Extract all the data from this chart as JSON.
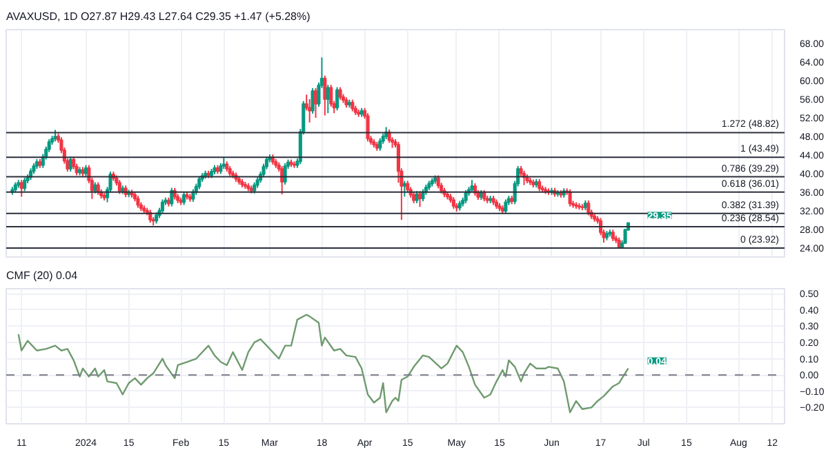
{
  "chart_data": [
    {
      "type": "candlestick",
      "title": "AVAXUSD, 1D O27.87 H29.43 L27.64 C29.35 +1.47 (+5.28%)",
      "tick_labels": "y",
      "grid": "x",
      "xlim": [
        "2023-12-06",
        "2024-08-16"
      ],
      "ylim": [
        22,
        71
      ],
      "xticks": [
        {
          "value": "2023-12-11",
          "label": null
        },
        {
          "value": "2024-01-01",
          "label": null
        },
        {
          "value": "2024-01-15",
          "label": null
        },
        {
          "value": "2024-02-01",
          "label": null
        },
        {
          "value": "2024-02-15",
          "label": null
        },
        {
          "value": "2024-03-01",
          "label": null
        },
        {
          "value": "2024-03-18",
          "label": null
        },
        {
          "value": "2024-04-01",
          "label": null
        },
        {
          "value": "2024-04-15",
          "label": null
        },
        {
          "value": "2024-05-01",
          "label": null
        },
        {
          "value": "2024-05-15",
          "label": null
        },
        {
          "value": "2024-06-01",
          "label": null
        },
        {
          "value": "2024-06-17",
          "label": null
        },
        {
          "value": "2024-07-01",
          "label": null
        },
        {
          "value": "2024-07-15",
          "label": null
        },
        {
          "value": "2024-08-01",
          "label": null
        },
        {
          "value": "2024-08-12",
          "label": null
        }
      ],
      "yticks": [
        {
          "value": 24,
          "label": "24.00"
        },
        {
          "value": 28,
          "label": "28.00"
        },
        {
          "value": 32,
          "label": "32.00"
        },
        {
          "value": 36,
          "label": "36.00"
        },
        {
          "value": 40,
          "label": "40.00"
        },
        {
          "value": 44,
          "label": "44.00"
        },
        {
          "value": 48,
          "label": "48.00"
        },
        {
          "value": 52,
          "label": "52.00"
        },
        {
          "value": 56,
          "label": "56.00"
        },
        {
          "value": 60,
          "label": "60.00"
        },
        {
          "value": 64,
          "label": "64.00"
        },
        {
          "value": 68,
          "label": "68.00"
        }
      ],
      "ref_lines": [
        {
          "axis": "y",
          "value": 48.82,
          "label": "1.272 (48.82)",
          "color": "#2a2e39"
        },
        {
          "axis": "y",
          "value": 43.49,
          "label": "1 (43.49)",
          "color": "#2a2e39"
        },
        {
          "axis": "y",
          "value": 39.29,
          "label": "0.786 (39.29)",
          "color": "#2a2e39"
        },
        {
          "axis": "y",
          "value": 36.01,
          "label": "0.618 (36.01)",
          "color": "#2a2e39"
        },
        {
          "axis": "y",
          "value": 31.39,
          "label": "0.382 (31.39)",
          "color": "#2a2e39"
        },
        {
          "axis": "y",
          "value": 28.54,
          "label": "0.236 (28.54)",
          "color": "#2a2e39"
        },
        {
          "axis": "y",
          "value": 23.92,
          "label": "0 (23.92)",
          "color": "#2a2e39"
        }
      ],
      "annotations": [
        {
          "text": "29.35",
          "x": "2024-06-26",
          "y": 29.35
        }
      ],
      "x": [
        "2023-12-08",
        "2023-12-09",
        "2023-12-10",
        "2023-12-11",
        "2023-12-12",
        "2023-12-13",
        "2023-12-14",
        "2023-12-15",
        "2023-12-16",
        "2023-12-17",
        "2023-12-18",
        "2023-12-19",
        "2023-12-20",
        "2023-12-21",
        "2023-12-22",
        "2023-12-23",
        "2023-12-24",
        "2023-12-25",
        "2023-12-26",
        "2023-12-27",
        "2023-12-28",
        "2023-12-29",
        "2023-12-30",
        "2023-12-31",
        "2024-01-01",
        "2024-01-02",
        "2024-01-03",
        "2024-01-04",
        "2024-01-05",
        "2024-01-06",
        "2024-01-07",
        "2024-01-08",
        "2024-01-09",
        "2024-01-10",
        "2024-01-11",
        "2024-01-12",
        "2024-01-13",
        "2024-01-14",
        "2024-01-15",
        "2024-01-16",
        "2024-01-17",
        "2024-01-18",
        "2024-01-19",
        "2024-01-20",
        "2024-01-21",
        "2024-01-22",
        "2024-01-23",
        "2024-01-24",
        "2024-01-25",
        "2024-01-26",
        "2024-01-27",
        "2024-01-28",
        "2024-01-29",
        "2024-01-30",
        "2024-01-31",
        "2024-02-01",
        "2024-02-02",
        "2024-02-03",
        "2024-02-04",
        "2024-02-05",
        "2024-02-06",
        "2024-02-07",
        "2024-02-08",
        "2024-02-09",
        "2024-02-10",
        "2024-02-11",
        "2024-02-12",
        "2024-02-13",
        "2024-02-14",
        "2024-02-15",
        "2024-02-16",
        "2024-02-17",
        "2024-02-18",
        "2024-02-19",
        "2024-02-20",
        "2024-02-21",
        "2024-02-22",
        "2024-02-23",
        "2024-02-24",
        "2024-02-25",
        "2024-02-26",
        "2024-02-27",
        "2024-02-28",
        "2024-02-29",
        "2024-03-01",
        "2024-03-02",
        "2024-03-03",
        "2024-03-04",
        "2024-03-05",
        "2024-03-06",
        "2024-03-07",
        "2024-03-08",
        "2024-03-09",
        "2024-03-10",
        "2024-03-11",
        "2024-03-12",
        "2024-03-13",
        "2024-03-14",
        "2024-03-15",
        "2024-03-16",
        "2024-03-17",
        "2024-03-18",
        "2024-03-19",
        "2024-03-20",
        "2024-03-21",
        "2024-03-22",
        "2024-03-23",
        "2024-03-24",
        "2024-03-25",
        "2024-03-26",
        "2024-03-27",
        "2024-03-28",
        "2024-03-29",
        "2024-03-30",
        "2024-03-31",
        "2024-04-01",
        "2024-04-02",
        "2024-04-03",
        "2024-04-04",
        "2024-04-05",
        "2024-04-06",
        "2024-04-07",
        "2024-04-08",
        "2024-04-09",
        "2024-04-10",
        "2024-04-11",
        "2024-04-12",
        "2024-04-13",
        "2024-04-14",
        "2024-04-15",
        "2024-04-16",
        "2024-04-17",
        "2024-04-18",
        "2024-04-19",
        "2024-04-20",
        "2024-04-21",
        "2024-04-22",
        "2024-04-23",
        "2024-04-24",
        "2024-04-25",
        "2024-04-26",
        "2024-04-27",
        "2024-04-28",
        "2024-04-29",
        "2024-04-30",
        "2024-05-01",
        "2024-05-02",
        "2024-05-03",
        "2024-05-04",
        "2024-05-05",
        "2024-05-06",
        "2024-05-07",
        "2024-05-08",
        "2024-05-09",
        "2024-05-10",
        "2024-05-11",
        "2024-05-12",
        "2024-05-13",
        "2024-05-14",
        "2024-05-15",
        "2024-05-16",
        "2024-05-17",
        "2024-05-18",
        "2024-05-19",
        "2024-05-20",
        "2024-05-21",
        "2024-05-22",
        "2024-05-23",
        "2024-05-24",
        "2024-05-25",
        "2024-05-26",
        "2024-05-27",
        "2024-05-28",
        "2024-05-29",
        "2024-05-30",
        "2024-05-31",
        "2024-06-01",
        "2024-06-02",
        "2024-06-03",
        "2024-06-04",
        "2024-06-05",
        "2024-06-06",
        "2024-06-07",
        "2024-06-08",
        "2024-06-09",
        "2024-06-10",
        "2024-06-11",
        "2024-06-12",
        "2024-06-13",
        "2024-06-14",
        "2024-06-15",
        "2024-06-16",
        "2024-06-17",
        "2024-06-18",
        "2024-06-19",
        "2024-06-20",
        "2024-06-21",
        "2024-06-22",
        "2024-06-23",
        "2024-06-24",
        "2024-06-25",
        "2024-06-26"
      ],
      "ohlc": [
        [
          36.0,
          37.1,
          35.4,
          36.5
        ],
        [
          36.5,
          38.1,
          35.9,
          37.5
        ],
        [
          37.5,
          38.6,
          36.9,
          38.0
        ],
        [
          38.0,
          38.6,
          35.0,
          36.8
        ],
        [
          36.8,
          39.1,
          36.2,
          38.5
        ],
        [
          38.5,
          39.8,
          37.9,
          39.2
        ],
        [
          39.2,
          41.1,
          38.6,
          40.5
        ],
        [
          40.5,
          42.2,
          39.9,
          41.6
        ],
        [
          41.6,
          43.1,
          41.0,
          42.5
        ],
        [
          42.5,
          43.1,
          41.2,
          41.8
        ],
        [
          41.8,
          44.2,
          41.2,
          43.6
        ],
        [
          43.6,
          45.8,
          43.0,
          45.2
        ],
        [
          45.2,
          47.4,
          44.6,
          46.8
        ],
        [
          46.8,
          48.1,
          46.2,
          47.5
        ],
        [
          47.5,
          49.4,
          46.9,
          48.0
        ],
        [
          48.0,
          48.6,
          46.6,
          47.2
        ],
        [
          47.2,
          47.8,
          44.4,
          45.0
        ],
        [
          45.0,
          45.6,
          42.1,
          42.7
        ],
        [
          42.7,
          43.3,
          40.4,
          41.0
        ],
        [
          41.0,
          43.6,
          40.4,
          43.0
        ],
        [
          43.0,
          43.6,
          40.9,
          41.5
        ],
        [
          41.5,
          42.1,
          39.6,
          40.2
        ],
        [
          40.2,
          41.4,
          39.6,
          40.8
        ],
        [
          40.8,
          41.4,
          39.4,
          40.0
        ],
        [
          40.0,
          41.8,
          39.4,
          41.2
        ],
        [
          41.2,
          41.8,
          37.9,
          38.5
        ],
        [
          38.5,
          39.1,
          34.5,
          36.3
        ],
        [
          36.3,
          38.1,
          35.7,
          37.5
        ],
        [
          37.5,
          38.1,
          35.4,
          36.0
        ],
        [
          36.0,
          36.6,
          34.6,
          35.2
        ],
        [
          35.2,
          35.8,
          34.2,
          34.8
        ],
        [
          34.8,
          37.1,
          33.8,
          36.5
        ],
        [
          36.5,
          40.4,
          35.9,
          39.8
        ],
        [
          39.8,
          40.4,
          38.4,
          39.0
        ],
        [
          39.0,
          39.6,
          37.4,
          38.0
        ],
        [
          38.0,
          38.6,
          35.6,
          36.2
        ],
        [
          36.2,
          37.4,
          35.6,
          36.8
        ],
        [
          36.8,
          37.4,
          34.9,
          35.5
        ],
        [
          35.5,
          36.5,
          34.9,
          35.9
        ],
        [
          35.9,
          36.5,
          34.8,
          35.4
        ],
        [
          35.4,
          36.0,
          34.0,
          34.6
        ],
        [
          34.6,
          35.2,
          32.6,
          33.2
        ],
        [
          33.2,
          33.8,
          31.9,
          32.5
        ],
        [
          32.5,
          33.1,
          31.4,
          32.0
        ],
        [
          32.0,
          32.6,
          31.0,
          31.6
        ],
        [
          31.6,
          32.2,
          29.4,
          30.0
        ],
        [
          30.0,
          30.6,
          28.8,
          29.8
        ],
        [
          29.8,
          31.6,
          29.2,
          31.0
        ],
        [
          31.0,
          32.6,
          30.4,
          32.0
        ],
        [
          32.0,
          34.4,
          31.4,
          33.8
        ],
        [
          33.8,
          34.8,
          33.2,
          34.2
        ],
        [
          34.2,
          34.8,
          32.9,
          33.5
        ],
        [
          33.5,
          36.9,
          32.9,
          36.3
        ],
        [
          36.3,
          36.9,
          34.4,
          35.0
        ],
        [
          35.0,
          35.6,
          33.6,
          34.2
        ],
        [
          34.2,
          34.8,
          33.2,
          33.8
        ],
        [
          33.8,
          36.0,
          33.2,
          35.4
        ],
        [
          35.4,
          36.0,
          34.4,
          35.0
        ],
        [
          35.0,
          35.6,
          33.9,
          34.5
        ],
        [
          34.5,
          36.6,
          33.9,
          36.0
        ],
        [
          36.0,
          37.8,
          35.4,
          37.2
        ],
        [
          37.2,
          39.4,
          36.6,
          38.8
        ],
        [
          38.8,
          40.1,
          38.2,
          39.5
        ],
        [
          39.5,
          40.6,
          38.9,
          40.0
        ],
        [
          40.0,
          40.6,
          39.0,
          39.6
        ],
        [
          39.6,
          41.0,
          39.0,
          40.4
        ],
        [
          40.4,
          41.8,
          39.8,
          41.2
        ],
        [
          41.2,
          41.8,
          39.9,
          40.5
        ],
        [
          40.5,
          42.2,
          39.9,
          41.6
        ],
        [
          41.6,
          43.4,
          41.0,
          42.0
        ],
        [
          42.0,
          42.6,
          40.4,
          41.0
        ],
        [
          41.0,
          41.6,
          39.4,
          40.0
        ],
        [
          40.0,
          40.6,
          39.0,
          39.6
        ],
        [
          39.6,
          40.2,
          38.2,
          38.8
        ],
        [
          38.8,
          39.4,
          37.6,
          38.2
        ],
        [
          38.2,
          38.8,
          37.0,
          37.6
        ],
        [
          37.6,
          38.2,
          36.7,
          37.3
        ],
        [
          37.3,
          37.9,
          36.2,
          36.8
        ],
        [
          36.8,
          37.4,
          35.7,
          36.3
        ],
        [
          36.3,
          38.1,
          35.7,
          37.5
        ],
        [
          37.5,
          39.2,
          36.9,
          38.6
        ],
        [
          38.6,
          40.4,
          38.0,
          39.8
        ],
        [
          39.8,
          42.1,
          39.2,
          41.5
        ],
        [
          41.5,
          43.6,
          40.9,
          43.0
        ],
        [
          43.0,
          44.1,
          42.4,
          43.5
        ],
        [
          43.5,
          44.1,
          41.9,
          42.5
        ],
        [
          42.5,
          43.1,
          41.2,
          41.8
        ],
        [
          41.8,
          42.4,
          40.4,
          41.0
        ],
        [
          41.0,
          41.6,
          35.5,
          38.2
        ],
        [
          38.2,
          42.2,
          37.6,
          41.6
        ],
        [
          41.6,
          43.0,
          41.0,
          42.4
        ],
        [
          42.4,
          43.0,
          41.4,
          42.0
        ],
        [
          42.0,
          42.6,
          41.2,
          41.8
        ],
        [
          41.8,
          43.2,
          41.2,
          42.6
        ],
        [
          42.6,
          49.6,
          42.0,
          49.0
        ],
        [
          49.0,
          55.6,
          48.4,
          55.0
        ],
        [
          55.0,
          57.0,
          53.6,
          54.2
        ],
        [
          54.2,
          56.0,
          51.0,
          53.5
        ],
        [
          53.5,
          58.4,
          52.9,
          57.8
        ],
        [
          57.8,
          58.4,
          52.0,
          55.0
        ],
        [
          55.0,
          59.6,
          54.4,
          59.0
        ],
        [
          59.0,
          65.0,
          58.4,
          60.5
        ],
        [
          60.5,
          61.1,
          52.5,
          56.0
        ],
        [
          56.0,
          59.1,
          53.0,
          58.5
        ],
        [
          58.5,
          59.1,
          54.4,
          55.0
        ],
        [
          55.0,
          55.6,
          53.0,
          54.2
        ],
        [
          54.2,
          58.6,
          53.6,
          58.0
        ],
        [
          58.0,
          58.6,
          55.9,
          56.5
        ],
        [
          56.5,
          57.1,
          55.2,
          55.8
        ],
        [
          55.8,
          56.4,
          54.2,
          54.8
        ],
        [
          54.8,
          55.9,
          54.2,
          55.3
        ],
        [
          55.3,
          55.9,
          53.4,
          54.0
        ],
        [
          54.0,
          54.6,
          52.6,
          53.2
        ],
        [
          53.2,
          53.8,
          52.2,
          52.8
        ],
        [
          52.8,
          54.1,
          52.2,
          53.5
        ],
        [
          53.5,
          54.1,
          51.8,
          52.4
        ],
        [
          52.4,
          53.0,
          46.9,
          47.5
        ],
        [
          47.5,
          48.1,
          46.2,
          46.8
        ],
        [
          46.8,
          47.4,
          45.6,
          46.2
        ],
        [
          46.2,
          46.8,
          44.9,
          45.5
        ],
        [
          45.5,
          47.6,
          44.9,
          47.0
        ],
        [
          47.0,
          48.6,
          46.4,
          48.0
        ],
        [
          48.0,
          50.0,
          47.4,
          48.9
        ],
        [
          48.9,
          49.5,
          46.6,
          47.2
        ],
        [
          47.2,
          47.8,
          45.5,
          46.8
        ],
        [
          46.8,
          47.4,
          45.6,
          46.2
        ],
        [
          46.2,
          46.8,
          38.0,
          40.5
        ],
        [
          40.5,
          41.1,
          30.0,
          37.3
        ],
        [
          37.3,
          38.4,
          35.0,
          37.8
        ],
        [
          37.8,
          38.4,
          35.9,
          36.5
        ],
        [
          36.5,
          37.1,
          34.8,
          35.4
        ],
        [
          35.4,
          36.0,
          33.6,
          34.2
        ],
        [
          34.2,
          36.2,
          33.6,
          35.6
        ],
        [
          35.6,
          36.2,
          32.8,
          34.6
        ],
        [
          34.6,
          36.6,
          34.0,
          36.0
        ],
        [
          36.0,
          37.6,
          35.4,
          37.0
        ],
        [
          37.0,
          38.4,
          36.4,
          37.8
        ],
        [
          37.8,
          39.0,
          37.2,
          38.4
        ],
        [
          38.4,
          39.6,
          37.8,
          39.0
        ],
        [
          39.0,
          39.6,
          36.8,
          37.4
        ],
        [
          37.4,
          38.0,
          35.7,
          36.3
        ],
        [
          36.3,
          36.9,
          34.9,
          35.5
        ],
        [
          35.5,
          36.1,
          34.4,
          35.0
        ],
        [
          35.0,
          35.6,
          33.7,
          34.3
        ],
        [
          34.3,
          34.9,
          32.4,
          33.0
        ],
        [
          33.0,
          33.6,
          31.8,
          32.6
        ],
        [
          32.6,
          34.1,
          32.0,
          33.5
        ],
        [
          33.5,
          34.8,
          32.9,
          34.2
        ],
        [
          34.2,
          36.4,
          33.6,
          35.8
        ],
        [
          35.8,
          37.1,
          35.2,
          36.5
        ],
        [
          36.5,
          38.6,
          35.9,
          37.3
        ],
        [
          37.3,
          37.9,
          35.2,
          35.8
        ],
        [
          35.8,
          36.4,
          34.3,
          34.9
        ],
        [
          34.9,
          36.4,
          34.3,
          35.8
        ],
        [
          35.8,
          36.4,
          34.0,
          34.6
        ],
        [
          34.6,
          35.2,
          33.6,
          34.2
        ],
        [
          34.2,
          35.2,
          33.6,
          34.6
        ],
        [
          34.6,
          35.2,
          33.2,
          33.8
        ],
        [
          33.8,
          34.4,
          32.4,
          33.0
        ],
        [
          33.0,
          33.6,
          31.9,
          32.5
        ],
        [
          32.5,
          33.1,
          31.3,
          31.9
        ],
        [
          31.9,
          34.4,
          31.3,
          33.8
        ],
        [
          33.8,
          35.2,
          33.2,
          34.6
        ],
        [
          34.6,
          35.2,
          33.4,
          34.0
        ],
        [
          34.0,
          38.4,
          33.4,
          37.8
        ],
        [
          37.8,
          41.6,
          37.2,
          41.0
        ],
        [
          41.0,
          41.6,
          39.4,
          40.0
        ],
        [
          40.0,
          40.6,
          37.5,
          39.2
        ],
        [
          39.2,
          39.8,
          37.9,
          38.5
        ],
        [
          38.5,
          39.1,
          37.5,
          38.1
        ],
        [
          38.1,
          38.7,
          37.0,
          37.6
        ],
        [
          37.6,
          38.8,
          37.0,
          38.2
        ],
        [
          38.2,
          38.8,
          36.2,
          36.8
        ],
        [
          36.8,
          37.4,
          35.9,
          36.5
        ],
        [
          36.5,
          37.1,
          35.6,
          36.2
        ],
        [
          36.2,
          36.8,
          35.4,
          36.0
        ],
        [
          36.0,
          36.9,
          35.4,
          36.3
        ],
        [
          36.3,
          36.9,
          35.0,
          35.6
        ],
        [
          35.6,
          36.4,
          35.0,
          35.8
        ],
        [
          35.8,
          36.4,
          34.8,
          35.4
        ],
        [
          35.4,
          36.8,
          34.8,
          36.2
        ],
        [
          36.2,
          36.8,
          35.4,
          36.0
        ],
        [
          36.0,
          36.6,
          32.9,
          33.5
        ],
        [
          33.5,
          34.1,
          32.6,
          33.2
        ],
        [
          33.2,
          33.8,
          32.4,
          33.0
        ],
        [
          33.0,
          33.6,
          32.2,
          32.8
        ],
        [
          32.8,
          33.4,
          32.1,
          32.7
        ],
        [
          32.7,
          34.2,
          32.1,
          33.6
        ],
        [
          33.6,
          34.2,
          31.0,
          31.6
        ],
        [
          31.6,
          32.2,
          30.2,
          30.8
        ],
        [
          30.8,
          31.4,
          29.6,
          30.2
        ],
        [
          30.2,
          30.8,
          29.2,
          29.8
        ],
        [
          29.8,
          30.4,
          26.7,
          27.3
        ],
        [
          27.3,
          27.9,
          25.1,
          26.2
        ],
        [
          26.2,
          27.6,
          25.6,
          27.0
        ],
        [
          27.0,
          27.9,
          26.4,
          27.3
        ],
        [
          27.3,
          27.9,
          25.4,
          26.0
        ],
        [
          26.0,
          26.6,
          25.0,
          25.6
        ],
        [
          25.6,
          26.2,
          23.92,
          24.1
        ],
        [
          24.1,
          25.6,
          23.95,
          25.0
        ],
        [
          25.0,
          28.1,
          24.8,
          27.87
        ],
        [
          27.87,
          29.43,
          27.64,
          29.35
        ]
      ],
      "colors": [
        "#089981",
        "#089981",
        "#089981",
        "#f23645",
        "#089981",
        "#089981",
        "#089981",
        "#089981",
        "#089981",
        "#f23645",
        "#089981",
        "#089981",
        "#089981",
        "#089981",
        "#089981",
        "#f23645",
        "#f23645",
        "#f23645",
        "#f23645",
        "#089981",
        "#f23645",
        "#f23645",
        "#089981",
        "#f23645",
        "#089981",
        "#f23645",
        "#f23645",
        "#089981",
        "#f23645",
        "#f23645",
        "#f23645",
        "#089981",
        "#089981",
        "#f23645",
        "#f23645",
        "#f23645",
        "#089981",
        "#f23645",
        "#089981",
        "#f23645",
        "#f23645",
        "#f23645",
        "#f23645",
        "#f23645",
        "#f23645",
        "#f23645",
        "#f23645",
        "#089981",
        "#089981",
        "#089981",
        "#089981",
        "#f23645",
        "#089981",
        "#f23645",
        "#f23645",
        "#f23645",
        "#089981",
        "#f23645",
        "#f23645",
        "#089981",
        "#089981",
        "#089981",
        "#089981",
        "#089981",
        "#f23645",
        "#089981",
        "#089981",
        "#f23645",
        "#089981",
        "#089981",
        "#f23645",
        "#f23645",
        "#f23645",
        "#f23645",
        "#f23645",
        "#f23645",
        "#f23645",
        "#f23645",
        "#f23645",
        "#089981",
        "#089981",
        "#089981",
        "#089981",
        "#089981",
        "#089981",
        "#f23645",
        "#f23645",
        "#f23645",
        "#f23645",
        "#089981",
        "#089981",
        "#f23645",
        "#f23645",
        "#089981",
        "#089981",
        "#089981",
        "#f23645",
        "#f23645",
        "#089981",
        "#f23645",
        "#089981",
        "#089981",
        "#f23645",
        "#089981",
        "#f23645",
        "#f23645",
        "#089981",
        "#f23645",
        "#f23645",
        "#f23645",
        "#089981",
        "#f23645",
        "#f23645",
        "#f23645",
        "#089981",
        "#f23645",
        "#f23645",
        "#f23645",
        "#f23645",
        "#f23645",
        "#089981",
        "#089981",
        "#089981",
        "#f23645",
        "#f23645",
        "#f23645",
        "#f23645",
        "#f23645",
        "#089981",
        "#f23645",
        "#f23645",
        "#f23645",
        "#089981",
        "#f23645",
        "#089981",
        "#089981",
        "#089981",
        "#089981",
        "#089981",
        "#f23645",
        "#f23645",
        "#f23645",
        "#f23645",
        "#f23645",
        "#f23645",
        "#f23645",
        "#089981",
        "#089981",
        "#089981",
        "#089981",
        "#089981",
        "#f23645",
        "#f23645",
        "#089981",
        "#f23645",
        "#f23645",
        "#089981",
        "#f23645",
        "#f23645",
        "#f23645",
        "#f23645",
        "#089981",
        "#089981",
        "#f23645",
        "#089981",
        "#089981",
        "#f23645",
        "#f23645",
        "#f23645",
        "#f23645",
        "#f23645",
        "#089981",
        "#f23645",
        "#f23645",
        "#f23645",
        "#f23645",
        "#089981",
        "#f23645",
        "#089981",
        "#f23645",
        "#089981",
        "#f23645",
        "#f23645",
        "#f23645",
        "#f23645",
        "#f23645",
        "#f23645",
        "#089981",
        "#f23645",
        "#f23645",
        "#f23645",
        "#f23645",
        "#f23645",
        "#f23645",
        "#089981",
        "#089981",
        "#f23645",
        "#f23645",
        "#f23645",
        "#089981",
        "#089981",
        "#089981"
      ]
    },
    {
      "type": "line",
      "title": "CMF (20) 0.04",
      "grid": true,
      "xlim": [
        "2023-12-06",
        "2024-08-16"
      ],
      "ylim": [
        -0.3,
        0.53
      ],
      "xticks": [
        {
          "value": "2023-12-11",
          "label": "11"
        },
        {
          "value": "2024-01-01",
          "label": "2024"
        },
        {
          "value": "2024-01-15",
          "label": "15"
        },
        {
          "value": "2024-02-01",
          "label": "Feb"
        },
        {
          "value": "2024-02-15",
          "label": "15"
        },
        {
          "value": "2024-03-01",
          "label": "Mar"
        },
        {
          "value": "2024-03-18",
          "label": "18"
        },
        {
          "value": "2024-04-01",
          "label": "Apr"
        },
        {
          "value": "2024-04-15",
          "label": "15"
        },
        {
          "value": "2024-05-01",
          "label": "May"
        },
        {
          "value": "2024-05-15",
          "label": "15"
        },
        {
          "value": "2024-06-01",
          "label": "Jun"
        },
        {
          "value": "2024-06-17",
          "label": "17"
        },
        {
          "value": "2024-07-01",
          "label": "Jul"
        },
        {
          "value": "2024-07-15",
          "label": "15"
        },
        {
          "value": "2024-08-01",
          "label": "Aug"
        },
        {
          "value": "2024-08-12",
          "label": "12"
        }
      ],
      "yticks": [
        {
          "value": -0.2,
          "label": "−0.20"
        },
        {
          "value": -0.1,
          "label": "−0.10"
        },
        {
          "value": 0,
          "label": "0.00"
        },
        {
          "value": 0.1,
          "label": "0.10"
        },
        {
          "value": 0.2,
          "label": "0.20"
        },
        {
          "value": 0.3,
          "label": "0.30"
        },
        {
          "value": 0.4,
          "label": "0.40"
        },
        {
          "value": 0.5,
          "label": "0.50"
        }
      ],
      "ref_lines": [
        {
          "axis": "y",
          "value": 0,
          "color": "#787b86",
          "line_style": "dashed"
        }
      ],
      "annotations": [
        {
          "text": "0.04",
          "x": "2024-06-26",
          "y": 0.04
        }
      ],
      "x": [
        "2023-12-10",
        "2023-12-11",
        "2023-12-13",
        "2023-12-16",
        "2023-12-19",
        "2023-12-22",
        "2023-12-24",
        "2023-12-26",
        "2023-12-28",
        "2023-12-30",
        "2023-12-31",
        "2024-01-02",
        "2024-01-04",
        "2024-01-05",
        "2024-01-07",
        "2024-01-08",
        "2024-01-11",
        "2024-01-13",
        "2024-01-15",
        "2024-01-17",
        "2024-01-19",
        "2024-01-21",
        "2024-01-23",
        "2024-01-26",
        "2024-01-27",
        "2024-01-30",
        "2024-01-31",
        "2024-02-03",
        "2024-02-06",
        "2024-02-10",
        "2024-02-12",
        "2024-02-14",
        "2024-02-16",
        "2024-02-18",
        "2024-02-21",
        "2024-02-23",
        "2024-02-25",
        "2024-02-27",
        "2024-02-29",
        "2024-03-02",
        "2024-03-04",
        "2024-03-06",
        "2024-03-08",
        "2024-03-10",
        "2024-03-13",
        "2024-03-14",
        "2024-03-17",
        "2024-03-18",
        "2024-03-19",
        "2024-03-22",
        "2024-03-24",
        "2024-03-26",
        "2024-03-29",
        "2024-03-31",
        "2024-04-02",
        "2024-04-04",
        "2024-04-06",
        "2024-04-07",
        "2024-04-08",
        "2024-04-10",
        "2024-04-11",
        "2024-04-12",
        "2024-04-13",
        "2024-04-15",
        "2024-04-17",
        "2024-04-20",
        "2024-04-22",
        "2024-04-26",
        "2024-04-28",
        "2024-05-01",
        "2024-05-03",
        "2024-05-05",
        "2024-05-07",
        "2024-05-10",
        "2024-05-12",
        "2024-05-14",
        "2024-05-16",
        "2024-05-17",
        "2024-05-18",
        "2024-05-20",
        "2024-05-22",
        "2024-05-23",
        "2024-05-25",
        "2024-05-27",
        "2024-05-30",
        "2024-05-31",
        "2024-06-03",
        "2024-06-05",
        "2024-06-07",
        "2024-06-09",
        "2024-06-11",
        "2024-06-14",
        "2024-06-16",
        "2024-06-18",
        "2024-06-21",
        "2024-06-23",
        "2024-06-26"
      ],
      "series": [
        {
          "color": "#6f9a6f",
          "values": [
            0.25,
            0.15,
            0.21,
            0.15,
            0.16,
            0.18,
            0.15,
            0.16,
            0.09,
            -0.01,
            0.04,
            -0.01,
            0.04,
            -0.01,
            0.03,
            -0.04,
            -0.05,
            -0.12,
            -0.05,
            -0.02,
            -0.06,
            -0.02,
            0.01,
            0.1,
            0.06,
            -0.02,
            0.06,
            0.08,
            0.1,
            0.18,
            0.12,
            0.08,
            0.06,
            0.14,
            0.03,
            0.14,
            0.2,
            0.22,
            0.18,
            0.14,
            0.1,
            0.18,
            0.18,
            0.34,
            0.37,
            0.36,
            0.32,
            0.18,
            0.23,
            0.15,
            0.16,
            0.12,
            0.11,
            0.04,
            -0.12,
            -0.17,
            -0.14,
            -0.05,
            -0.23,
            -0.16,
            -0.14,
            -0.16,
            -0.03,
            -0.01,
            0.05,
            0.12,
            0.11,
            0.04,
            0.07,
            0.18,
            0.14,
            0.05,
            -0.06,
            -0.14,
            -0.12,
            -0.04,
            0.03,
            -0.01,
            0.09,
            0.05,
            -0.04,
            0.01,
            0.07,
            0.04,
            0.04,
            0.05,
            0.04,
            -0.04,
            -0.23,
            -0.16,
            -0.21,
            -0.2,
            -0.16,
            -0.13,
            -0.07,
            -0.05,
            0.04
          ]
        }
      ]
    }
  ]
}
